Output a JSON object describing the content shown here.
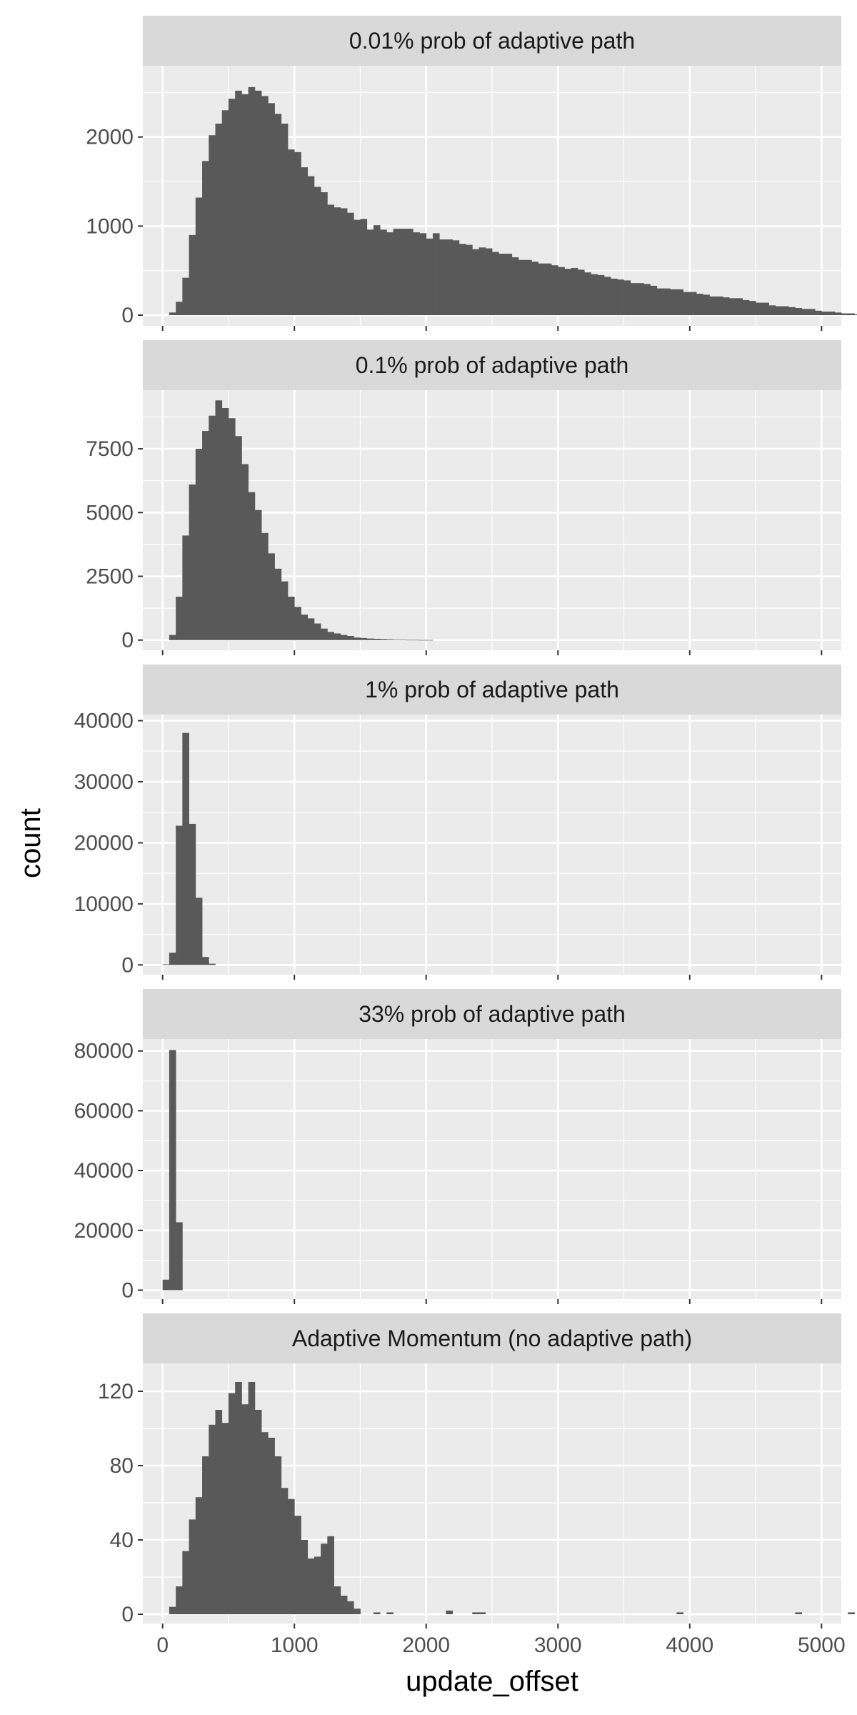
{
  "chart_data": {
    "type": "histogram",
    "xlabel": "update_offset",
    "ylabel": "count",
    "xlim": [
      -150,
      5150
    ],
    "x_ticks": [
      0,
      1000,
      2000,
      3000,
      4000,
      5000
    ],
    "bin_width": 50,
    "grid": true,
    "colors": {
      "bar": "#595959",
      "panel_bg": "#ebebeb",
      "strip_bg": "#d9d9d9",
      "grid": "#ffffff"
    },
    "panels": [
      {
        "title": "0.01% prob of adaptive path",
        "ylim": [
          -120,
          2800
        ],
        "y_ticks": [
          0,
          1000,
          2000
        ],
        "bins_start": 75,
        "counts": [
          30,
          150,
          420,
          900,
          1320,
          1730,
          2020,
          2150,
          2300,
          2430,
          2520,
          2480,
          2560,
          2520,
          2460,
          2380,
          2260,
          2150,
          1860,
          1830,
          1660,
          1560,
          1440,
          1380,
          1240,
          1210,
          1200,
          1150,
          1070,
          1080,
          960,
          1010,
          960,
          930,
          970,
          970,
          970,
          930,
          920,
          860,
          920,
          850,
          850,
          840,
          800,
          790,
          740,
          760,
          750,
          710,
          690,
          690,
          650,
          620,
          620,
          600,
          580,
          580,
          560,
          540,
          520,
          530,
          510,
          480,
          460,
          450,
          430,
          410,
          400,
          390,
          360,
          360,
          350,
          330,
          300,
          300,
          290,
          290,
          260,
          260,
          240,
          230,
          210,
          210,
          200,
          190,
          190,
          170,
          160,
          140,
          140,
          110,
          100,
          100,
          90,
          80,
          70,
          70,
          50,
          40,
          40,
          30,
          20,
          20,
          10
        ]
      },
      {
        "title": "0.1% prob of adaptive path",
        "ylim": [
          -400,
          9800
        ],
        "y_ticks": [
          0,
          2500,
          5000,
          7500
        ],
        "bins_start": 75,
        "counts": [
          200,
          1700,
          4100,
          6100,
          7500,
          8200,
          8800,
          9400,
          9100,
          8700,
          8000,
          6900,
          5800,
          5100,
          4200,
          3400,
          2800,
          2300,
          1700,
          1300,
          1000,
          850,
          650,
          450,
          320,
          260,
          200,
          160,
          100,
          80,
          60,
          50,
          40,
          30,
          20,
          20,
          10,
          10,
          5,
          5
        ]
      },
      {
        "title": "1% prob of adaptive path",
        "ylim": [
          -1600,
          41000
        ],
        "y_ticks": [
          0,
          10000,
          20000,
          30000,
          40000
        ],
        "bins_start": 25,
        "counts": [
          100,
          2000,
          22800,
          38000,
          23100,
          11000,
          1300,
          200
        ]
      },
      {
        "title": "33% prob of adaptive path",
        "ylim": [
          -3000,
          84000
        ],
        "y_ticks": [
          0,
          20000,
          40000,
          60000,
          80000
        ],
        "bins_start": 25,
        "counts": [
          3500,
          80300,
          22700
        ]
      },
      {
        "title": "Adaptive Momentum (no adaptive path)",
        "ylim": [
          -5,
          135
        ],
        "y_ticks": [
          0,
          40,
          80,
          120
        ],
        "y_tick_labels": [
          "0",
          "40",
          "80",
          "120"
        ],
        "bins_start": 75,
        "counts": [
          4,
          15,
          34,
          51,
          63,
          85,
          102,
          110,
          103,
          119,
          125,
          113,
          125,
          110,
          98,
          95,
          85,
          68,
          62,
          53,
          40,
          30,
          31,
          38,
          42,
          15,
          10,
          7,
          3,
          0,
          0,
          1,
          0,
          1,
          0,
          0,
          0,
          0,
          0,
          0,
          0,
          0,
          2,
          0,
          0,
          0,
          1,
          1,
          0,
          0,
          0,
          0,
          0,
          0,
          0,
          0,
          0,
          0,
          0,
          0,
          0,
          0,
          0,
          0,
          0,
          0,
          0,
          0,
          0,
          0,
          0,
          0,
          0,
          0,
          0,
          0,
          0,
          1,
          0,
          0,
          0,
          0,
          0,
          0,
          0,
          0,
          0,
          0,
          0,
          0,
          0,
          0,
          0,
          0,
          0,
          1,
          0,
          0,
          0,
          0,
          0,
          0,
          0,
          1
        ]
      }
    ]
  }
}
